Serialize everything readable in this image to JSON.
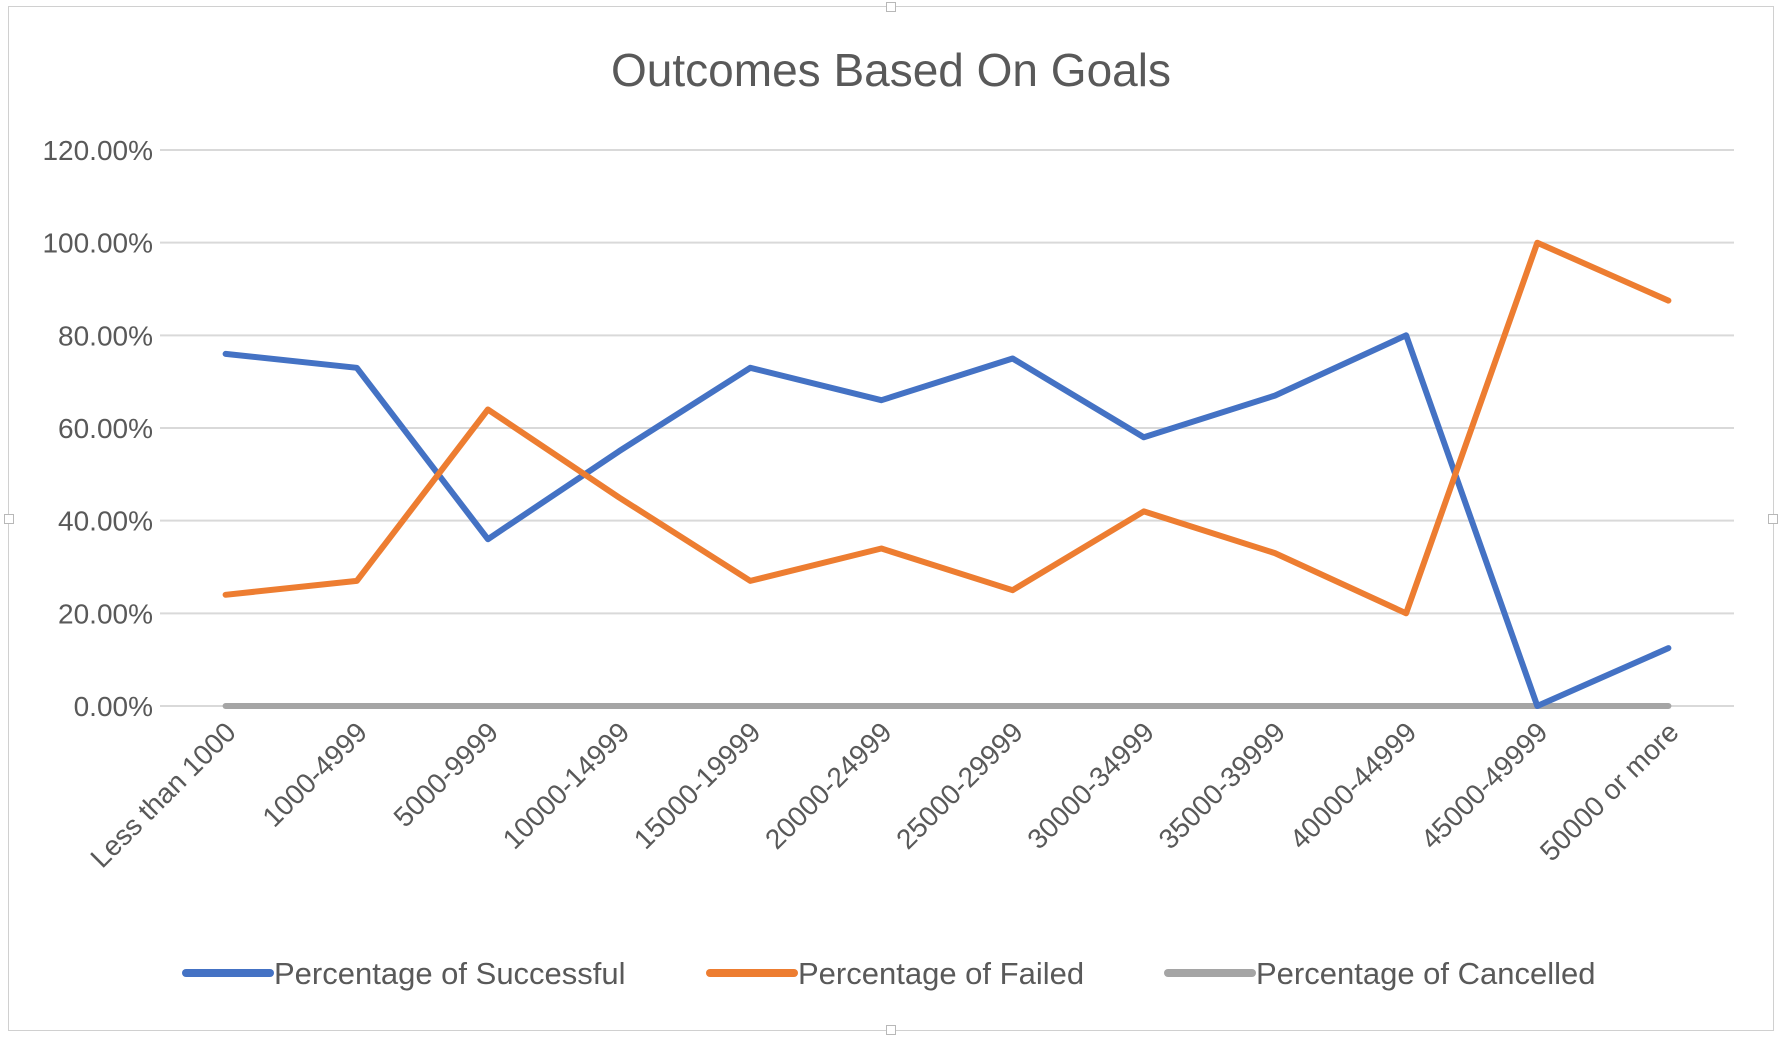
{
  "chart_data": {
    "type": "line",
    "title": "Outcomes Based On Goals",
    "xlabel": "",
    "ylabel": "",
    "ylim": [
      0,
      1.2
    ],
    "y_ticks": [
      0,
      0.2,
      0.4,
      0.6,
      0.8,
      1.0,
      1.2
    ],
    "y_tick_labels": [
      "0.00%",
      "20.00%",
      "40.00%",
      "60.00%",
      "80.00%",
      "100.00%",
      "120.00%"
    ],
    "categories": [
      "Less than 1000",
      "1000-4999",
      "5000-9999",
      "10000-14999",
      "15000-19999",
      "20000-24999",
      "25000-29999",
      "30000-34999",
      "35000-39999",
      "40000-44999",
      "45000-49999",
      "50000 or more"
    ],
    "series": [
      {
        "name": "Percentage of Successful",
        "color": "#4472c4",
        "values": [
          0.76,
          0.73,
          0.36,
          0.55,
          0.73,
          0.66,
          0.75,
          0.58,
          0.67,
          0.8,
          0.0,
          0.125
        ]
      },
      {
        "name": "Percentage of Failed",
        "color": "#ed7d31",
        "values": [
          0.24,
          0.27,
          0.64,
          0.45,
          0.27,
          0.34,
          0.25,
          0.42,
          0.33,
          0.2,
          1.0,
          0.875
        ]
      },
      {
        "name": "Percentage of Cancelled",
        "color": "#a5a5a5",
        "values": [
          0,
          0,
          0,
          0,
          0,
          0,
          0,
          0,
          0,
          0,
          0,
          0
        ]
      }
    ],
    "grid": true,
    "legend_position": "bottom"
  }
}
